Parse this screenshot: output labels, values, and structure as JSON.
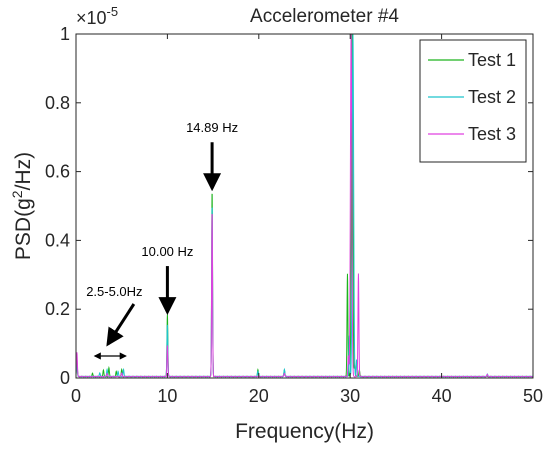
{
  "chart_data": {
    "type": "line",
    "title": "Accelerometer #4",
    "xlabel": "Frequency(Hz)",
    "ylabel_main": "PSD(g",
    "ylabel_sup": "2",
    "ylabel_tail": "/Hz)",
    "y_multiplier": {
      "base": "×10",
      "exp": "-5"
    },
    "xlim": [
      0,
      50
    ],
    "ylim": [
      0,
      1
    ],
    "x_ticks": [
      "0",
      "10",
      "20",
      "30",
      "40",
      "50"
    ],
    "y_ticks": [
      "0",
      "0.2",
      "0.4",
      "0.6",
      "0.8",
      "1"
    ],
    "grid": false,
    "legend_position": "top-right",
    "series": [
      {
        "name": "Test 1",
        "color": "#1db31d",
        "peaks": [
          [
            0.1,
            0.05
          ],
          [
            1.8,
            0.01
          ],
          [
            3.0,
            0.02
          ],
          [
            3.6,
            0.025
          ],
          [
            4.4,
            0.015
          ],
          [
            5.0,
            0.02
          ],
          [
            10.0,
            0.18
          ],
          [
            14.89,
            0.54
          ],
          [
            19.9,
            0.02
          ],
          [
            22.8,
            0.02
          ],
          [
            29.7,
            0.3
          ],
          [
            30.2,
            1.0
          ],
          [
            30.5,
            0.03
          ],
          [
            31.0,
            0.02
          ]
        ]
      },
      {
        "name": "Test 2",
        "color": "#1fc4cc",
        "peaks": [
          [
            0.1,
            0.04
          ],
          [
            2.6,
            0.01
          ],
          [
            3.4,
            0.02
          ],
          [
            4.6,
            0.015
          ],
          [
            5.2,
            0.02
          ],
          [
            10.0,
            0.15
          ],
          [
            14.89,
            0.5
          ],
          [
            19.9,
            0.015
          ],
          [
            22.8,
            0.02
          ],
          [
            29.9,
            0.12
          ],
          [
            30.3,
            1.0
          ],
          [
            30.7,
            0.05
          ],
          [
            45.0,
            0.008
          ]
        ]
      },
      {
        "name": "Test 3",
        "color": "#e040e0",
        "peaks": [
          [
            0.1,
            0.07
          ],
          [
            3.4,
            0.01
          ],
          [
            5.0,
            0.01
          ],
          [
            10.0,
            0.09
          ],
          [
            14.89,
            0.48
          ],
          [
            22.8,
            0.01
          ],
          [
            29.8,
            0.06
          ],
          [
            30.1,
            1.0
          ],
          [
            30.9,
            0.3
          ],
          [
            45.0,
            0.006
          ]
        ]
      }
    ],
    "annotations": [
      {
        "label": "14.89 Hz",
        "x": 14.89,
        "y": 0.54
      },
      {
        "label": "10.00 Hz",
        "x": 10.0,
        "y": 0.18
      },
      {
        "label": "2.5-5.0Hz",
        "range": [
          2.5,
          5.0
        ]
      }
    ]
  }
}
